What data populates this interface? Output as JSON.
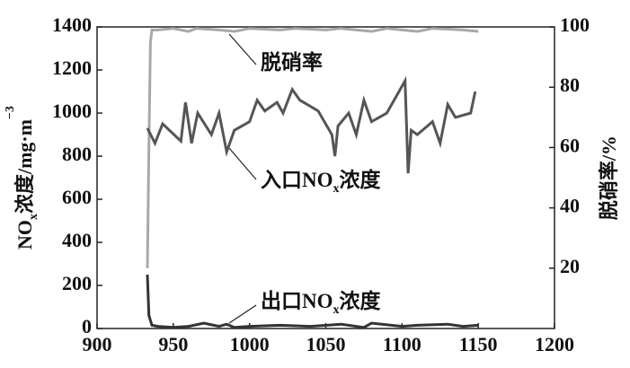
{
  "chart_data": {
    "type": "line",
    "xlim": [
      900,
      1200
    ],
    "xticks": [
      900,
      950,
      1000,
      1050,
      1100,
      1150,
      1200
    ],
    "ylim": [
      0,
      1400
    ],
    "yticks": [
      0,
      200,
      400,
      600,
      800,
      1000,
      1200,
      1400
    ],
    "y2lim": [
      0,
      100
    ],
    "y2ticks": [
      20,
      40,
      60,
      80,
      100
    ],
    "y_label": [
      "NO",
      "x",
      "浓度/mg·m",
      "−3"
    ],
    "y2_label": "脱硝率/%",
    "series": [
      {
        "label": [
          "脱硝率"
        ],
        "color": "#a8a8a8",
        "axis": "y2",
        "x": [
          933,
          934,
          935,
          936,
          940,
          950,
          960,
          965,
          980,
          990,
          1000,
          1020,
          1030,
          1050,
          1060,
          1080,
          1090,
          1100,
          1110,
          1120,
          1140,
          1150
        ],
        "values": [
          20,
          60,
          95,
          99,
          99,
          99.5,
          98.5,
          99.5,
          99,
          98.5,
          99.5,
          99,
          99.5,
          99,
          99.5,
          98.5,
          99.5,
          99,
          98.5,
          99.5,
          99,
          98.5
        ]
      },
      {
        "label": [
          "入口NO",
          "x",
          "浓度"
        ],
        "color": "#555555",
        "x": [
          933,
          938,
          943,
          955,
          958,
          962,
          966,
          975,
          980,
          985,
          990,
          1000,
          1005,
          1010,
          1018,
          1022,
          1028,
          1033,
          1045,
          1054,
          1056,
          1058,
          1065,
          1070,
          1075,
          1080,
          1090,
          1102,
          1104,
          1106,
          1110,
          1120,
          1125,
          1130,
          1135,
          1145,
          1148
        ],
        "values": [
          930,
          860,
          950,
          870,
          1050,
          860,
          1000,
          900,
          1000,
          820,
          920,
          960,
          1060,
          1010,
          1050,
          1000,
          1110,
          1060,
          1010,
          900,
          800,
          940,
          1000,
          900,
          1060,
          960,
          1000,
          1150,
          720,
          920,
          900,
          960,
          860,
          1040,
          980,
          1000,
          1100
        ]
      },
      {
        "label": [
          "出口NO",
          "x",
          "浓度"
        ],
        "color": "#333333",
        "x": [
          933,
          934,
          936,
          940,
          950,
          960,
          970,
          980,
          985,
          990,
          1000,
          1020,
          1040,
          1060,
          1075,
          1080,
          1100,
          1110,
          1130,
          1140,
          1150
        ],
        "values": [
          250,
          60,
          15,
          10,
          5,
          10,
          25,
          10,
          20,
          5,
          10,
          15,
          10,
          20,
          5,
          25,
          10,
          15,
          20,
          10,
          15
        ]
      }
    ]
  }
}
